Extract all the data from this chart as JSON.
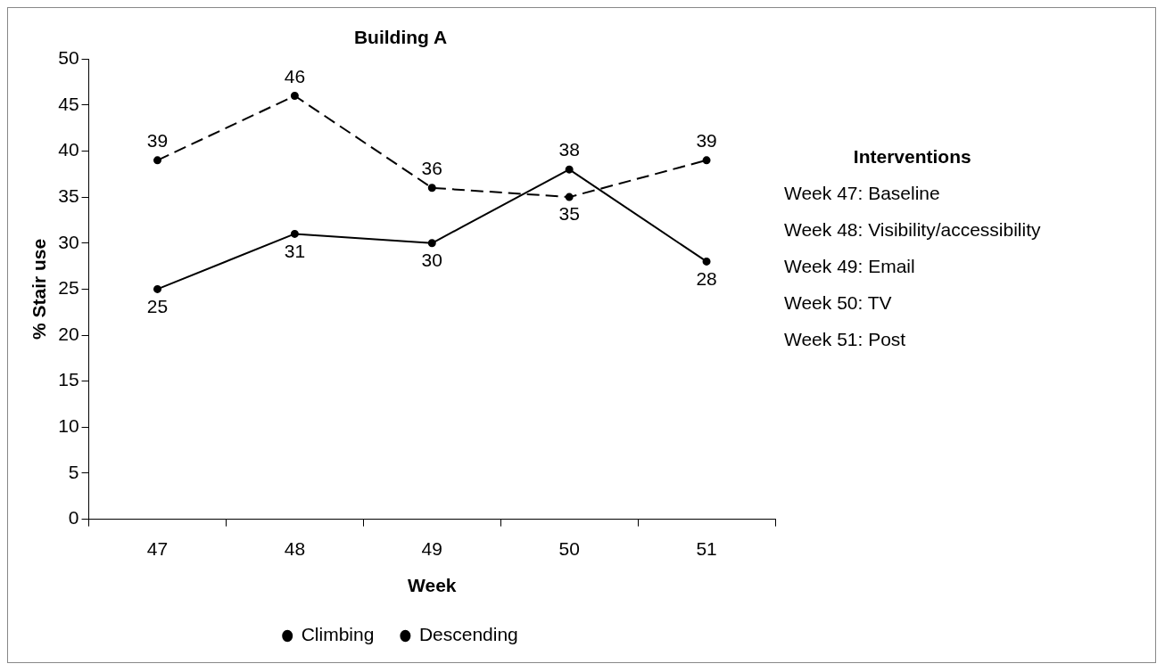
{
  "chart_data": {
    "type": "line",
    "title": "Building A",
    "xlabel": "Week",
    "ylabel": "% Stair use",
    "categories": [
      "47",
      "48",
      "49",
      "50",
      "51"
    ],
    "series": [
      {
        "name": "Climbing",
        "color": "#000000",
        "line_style": "solid",
        "values": [
          25,
          31,
          30,
          38,
          28
        ]
      },
      {
        "name": "Descending",
        "color": "#000000",
        "line_style": "dashed",
        "values": [
          39,
          46,
          36,
          35,
          39
        ]
      }
    ],
    "ylim": [
      0,
      50
    ],
    "yticks": [
      0,
      5,
      10,
      15,
      20,
      25,
      30,
      35,
      40,
      45,
      50
    ],
    "grid": false,
    "legend": "bottom",
    "marker": "circle",
    "data_labels": true,
    "annotations": [
      "Interventions",
      "Week 47: Baseline",
      "Week 48: Visibility/accessibility",
      "Week 49: Email",
      "Week 50: TV",
      "Week 51: Post"
    ]
  }
}
